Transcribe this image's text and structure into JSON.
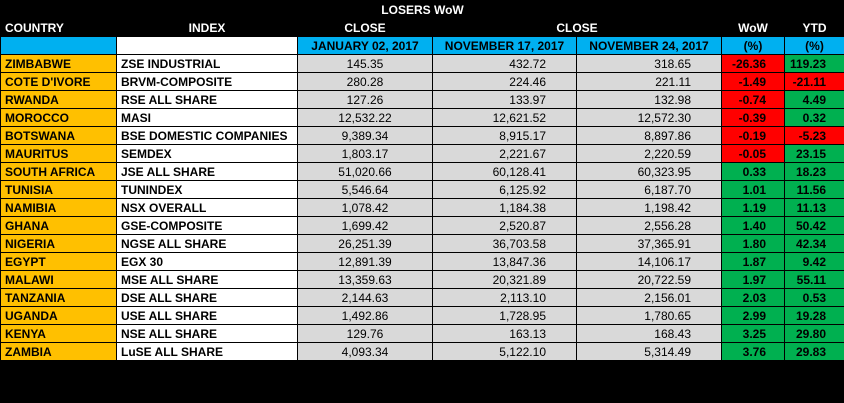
{
  "title": "LOSERS WoW",
  "headers": {
    "country": "COUNTRY",
    "index": "INDEX",
    "close1": "CLOSE",
    "close2": "CLOSE",
    "wow": "WoW",
    "ytd": "YTD",
    "date1": "JANUARY 02, 2017",
    "date2": "NOVEMBER 17, 2017",
    "date3": "NOVEMBER 24, 2017",
    "pct1": "(%)",
    "pct2": "(%)"
  },
  "colors": {
    "country": "#ffc000",
    "subheader": "#00b0f0",
    "positive": "#00b050",
    "negative": "#ff0000",
    "values": "#d9d9d9"
  },
  "rows": [
    {
      "country": "ZIMBABWE",
      "index": "ZSE INDUSTRIAL",
      "jan": "145.35",
      "nov17": "432.72",
      "nov24": "318.65",
      "wow": "-26.36",
      "ytd": "119.23"
    },
    {
      "country": "COTE D'IVORE",
      "index": "BRVM-COMPOSITE",
      "jan": "280.28",
      "nov17": "224.46",
      "nov24": "221.11",
      "wow": "-1.49",
      "ytd": "-21.11"
    },
    {
      "country": "RWANDA",
      "index": "RSE ALL SHARE",
      "jan": "127.26",
      "nov17": "133.97",
      "nov24": "132.98",
      "wow": "-0.74",
      "ytd": "4.49"
    },
    {
      "country": "MOROCCO",
      "index": "MASI",
      "jan": "12,532.22",
      "nov17": "12,621.52",
      "nov24": "12,572.30",
      "wow": "-0.39",
      "ytd": "0.32"
    },
    {
      "country": "BOTSWANA",
      "index": "BSE DOMESTIC COMPANIES",
      "jan": "9,389.34",
      "nov17": "8,915.17",
      "nov24": "8,897.86",
      "wow": "-0.19",
      "ytd": "-5.23"
    },
    {
      "country": "MAURITUS",
      "index": "SEMDEX",
      "jan": "1,803.17",
      "nov17": "2,221.67",
      "nov24": "2,220.59",
      "wow": "-0.05",
      "ytd": "23.15"
    },
    {
      "country": "SOUTH AFRICA",
      "index": "JSE ALL SHARE",
      "jan": "51,020.66",
      "nov17": "60,128.41",
      "nov24": "60,323.95",
      "wow": "0.33",
      "ytd": "18.23"
    },
    {
      "country": "TUNISIA",
      "index": "TUNINDEX",
      "jan": "5,546.64",
      "nov17": "6,125.92",
      "nov24": "6,187.70",
      "wow": "1.01",
      "ytd": "11.56"
    },
    {
      "country": "NAMIBIA",
      "index": "NSX OVERALL",
      "jan": "1,078.42",
      "nov17": "1,184.38",
      "nov24": "1,198.42",
      "wow": "1.19",
      "ytd": "11.13"
    },
    {
      "country": "GHANA",
      "index": "GSE-COMPOSITE",
      "jan": "1,699.42",
      "nov17": "2,520.87",
      "nov24": "2,556.28",
      "wow": "1.40",
      "ytd": "50.42"
    },
    {
      "country": "NIGERIA",
      "index": "NGSE ALL SHARE",
      "jan": "26,251.39",
      "nov17": "36,703.58",
      "nov24": "37,365.91",
      "wow": "1.80",
      "ytd": "42.34"
    },
    {
      "country": "EGYPT",
      "index": "EGX 30",
      "jan": "12,891.39",
      "nov17": "13,847.36",
      "nov24": "14,106.17",
      "wow": "1.87",
      "ytd": "9.42"
    },
    {
      "country": "MALAWI",
      "index": "MSE ALL SHARE",
      "jan": "13,359.63",
      "nov17": "20,321.89",
      "nov24": "20,722.59",
      "wow": "1.97",
      "ytd": "55.11"
    },
    {
      "country": "TANZANIA",
      "index": "DSE ALL SHARE",
      "jan": "2,144.63",
      "nov17": "2,113.10",
      "nov24": "2,156.01",
      "wow": "2.03",
      "ytd": "0.53"
    },
    {
      "country": "UGANDA",
      "index": "USE ALL SHARE",
      "jan": "1,492.86",
      "nov17": "1,728.95",
      "nov24": "1,780.65",
      "wow": "2.99",
      "ytd": "19.28"
    },
    {
      "country": "KENYA",
      "index": "NSE ALL SHARE",
      "jan": "129.76",
      "nov17": "163.13",
      "nov24": "168.43",
      "wow": "3.25",
      "ytd": "29.80"
    },
    {
      "country": "ZAMBIA",
      "index": "LuSE ALL SHARE",
      "jan": "4,093.34",
      "nov17": "5,122.10",
      "nov24": "5,314.49",
      "wow": "3.76",
      "ytd": "29.83"
    }
  ]
}
